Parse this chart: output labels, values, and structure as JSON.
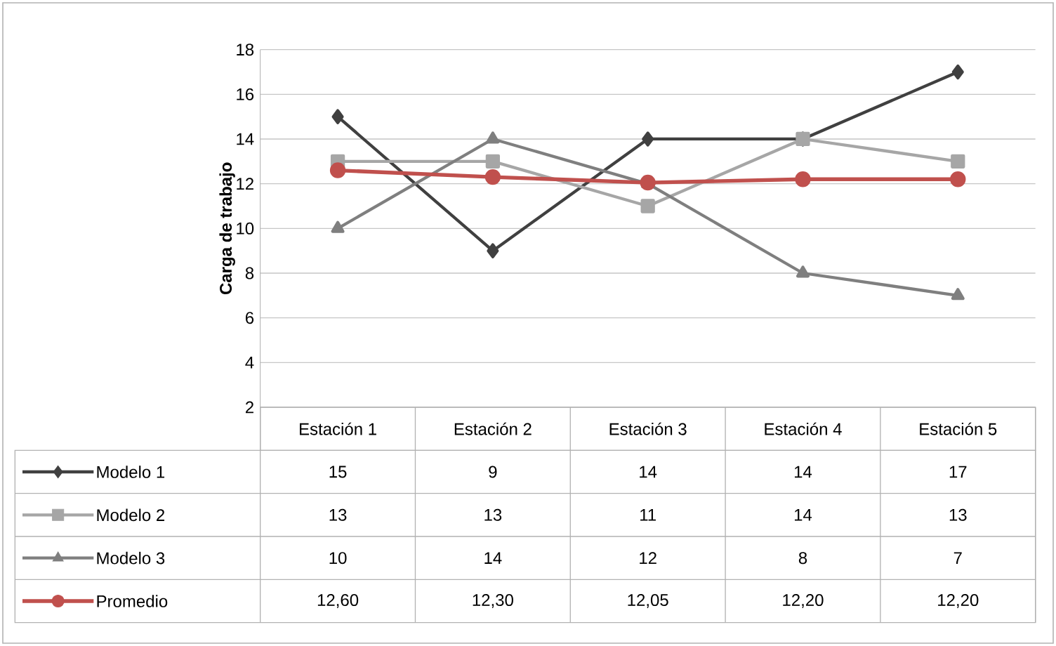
{
  "chart_data": {
    "type": "line",
    "ylabel": "Carga de trabajo",
    "categories": [
      "Estación 1",
      "Estación 2",
      "Estación 3",
      "Estación 4",
      "Estación 5"
    ],
    "ylim": [
      2,
      18
    ],
    "yticks": [
      2,
      4,
      6,
      8,
      10,
      12,
      14,
      16,
      18
    ],
    "grid": "y",
    "legend": "bottom left",
    "series": [
      {
        "name": "Modelo 1",
        "color": "#404040",
        "marker": "diamond",
        "values": [
          15,
          9,
          14,
          14,
          17
        ],
        "value_labels": [
          "15",
          "9",
          "14",
          "14",
          "17"
        ]
      },
      {
        "name": "Modelo 2",
        "color": "#a6a6a6",
        "marker": "square",
        "values": [
          13,
          13,
          11,
          14,
          13
        ],
        "value_labels": [
          "13",
          "13",
          "11",
          "14",
          "13"
        ]
      },
      {
        "name": "Modelo 3",
        "color": "#7f7f7f",
        "marker": "triangle",
        "values": [
          10,
          14,
          12,
          8,
          7
        ],
        "value_labels": [
          "10",
          "14",
          "12",
          "8",
          "7"
        ]
      },
      {
        "name": "Promedio",
        "color": "#c0504d",
        "marker": "circle",
        "values": [
          12.6,
          12.3,
          12.05,
          12.2,
          12.2
        ],
        "value_labels": [
          "12,60",
          "12,30",
          "12,05",
          "12,20",
          "12,20"
        ]
      }
    ]
  }
}
